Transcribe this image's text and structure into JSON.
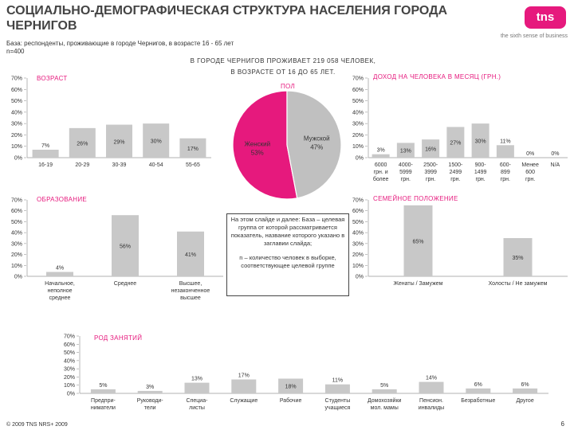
{
  "header": {
    "title": "СОЦИАЛЬНО-ДЕМОГРАФИЧЕСКАЯ СТРУКТУРА НАСЕЛЕНИЯ ГОРОДА ЧЕРНИГОВ",
    "logo": "tns",
    "slogan": "the sixth sense of business",
    "base": "База: респонденты, проживающие в городе Чернигов, в возрасте 16 - 65 лет",
    "n": "n=400",
    "headline_line1": "В ГОРОДЕ ЧЕРНИГОВ ПРОЖИВАЕТ 219 058 ЧЕЛОВЕК,",
    "headline_line2": "В ВОЗРАСТЕ ОТ 16 ДО 65 ЛЕТ."
  },
  "note": {
    "text1": "На этом слайде и далее: База – целевая группа от которой рассматривается показатель, название которого указано в заглавии слайда;",
    "text2": "n – количество человек в выборке, соответствующее целевой группе"
  },
  "footer": {
    "copyright": "© 2009 TNS   NRS+ 2009",
    "page": "6"
  },
  "colors": {
    "bar": "#c8c8c8",
    "pink": "#e6197d",
    "grey": "#c0c0c0"
  },
  "chart_data": [
    {
      "id": "age",
      "type": "bar",
      "title": "ВОЗРАСТ",
      "categories": [
        "16-19",
        "20-29",
        "30-39",
        "40-54",
        "55-65"
      ],
      "values": [
        7,
        26,
        29,
        30,
        17
      ],
      "labels": [
        "7%",
        "26%",
        "29%",
        "30%",
        "17%"
      ],
      "yticks": [
        "0%",
        "10%",
        "20%",
        "30%",
        "40%",
        "50%",
        "60%",
        "70%"
      ],
      "ylim": [
        0,
        70
      ]
    },
    {
      "id": "gender",
      "type": "pie",
      "title": "ПОЛ",
      "categories": [
        "Женский",
        "Мужской"
      ],
      "values": [
        53,
        47
      ],
      "labels": [
        "53%",
        "47%"
      ]
    },
    {
      "id": "income",
      "type": "bar",
      "title": "ДОХОД НА ЧЕЛОВЕКА В МЕСЯЦ (ГРН.)",
      "categories": [
        [
          "6000",
          "грн. и",
          "более"
        ],
        [
          "4000-",
          "5999",
          "грн."
        ],
        [
          "2500-",
          "3999",
          "грн."
        ],
        [
          "1500-",
          "2499",
          "грн."
        ],
        [
          "900-",
          "1499",
          "грн."
        ],
        [
          "600-",
          "899",
          "грн."
        ],
        [
          "Менее",
          "600",
          "грн."
        ],
        [
          "N/A"
        ]
      ],
      "values": [
        3,
        13,
        16,
        27,
        30,
        11,
        0,
        0
      ],
      "labels": [
        "3%",
        "13%",
        "16%",
        "27%",
        "30%",
        "11%",
        "0%",
        "0%"
      ],
      "yticks": [
        "0%",
        "10%",
        "20%",
        "30%",
        "40%",
        "50%",
        "60%",
        "70%"
      ],
      "ylim": [
        0,
        70
      ]
    },
    {
      "id": "education",
      "type": "bar",
      "title": "ОБРАЗОВАНИЕ",
      "categories": [
        [
          "Начальное,",
          "неполное",
          "среднее"
        ],
        [
          "Среднее"
        ],
        [
          "Высшее,",
          "незаконченное",
          "высшее"
        ]
      ],
      "values": [
        4,
        56,
        41
      ],
      "labels": [
        "4%",
        "56%",
        "41%"
      ],
      "yticks": [
        "0%",
        "10%",
        "20%",
        "30%",
        "40%",
        "50%",
        "60%",
        "70%"
      ],
      "ylim": [
        0,
        70
      ]
    },
    {
      "id": "family",
      "type": "bar",
      "title": "СЕМЕЙНОЕ ПОЛОЖЕНИЕ",
      "categories": [
        [
          "Женаты / Замужем"
        ],
        [
          "Холосты / Не замужем"
        ]
      ],
      "values": [
        65,
        35
      ],
      "labels": [
        "65%",
        "35%"
      ],
      "yticks": [
        "0%",
        "10%",
        "20%",
        "30%",
        "40%",
        "50%",
        "60%",
        "70%"
      ],
      "ylim": [
        0,
        70
      ]
    },
    {
      "id": "occupation",
      "type": "bar",
      "title": "РОД ЗАНЯТИЙ",
      "categories": [
        [
          "Предпри-",
          "ниматели"
        ],
        [
          "Руководи-",
          "тели"
        ],
        [
          "Специа-",
          "листы"
        ],
        [
          "Служащие"
        ],
        [
          "Рабочие"
        ],
        [
          "Студенты",
          "учащиеся"
        ],
        [
          "Домохозяйки",
          "мол. мамы"
        ],
        [
          "Пенсион.",
          "инвалиды"
        ],
        [
          "Безработные"
        ],
        [
          "Другое"
        ]
      ],
      "values": [
        5,
        3,
        13,
        17,
        18,
        11,
        5,
        14,
        6,
        6
      ],
      "labels": [
        "5%",
        "3%",
        "13%",
        "17%",
        "18%",
        "11%",
        "5%",
        "14%",
        "6%",
        "6%"
      ],
      "yticks": [
        "0%",
        "10%",
        "20%",
        "30%",
        "40%",
        "50%",
        "60%",
        "70%"
      ],
      "ylim": [
        0,
        70
      ]
    }
  ]
}
